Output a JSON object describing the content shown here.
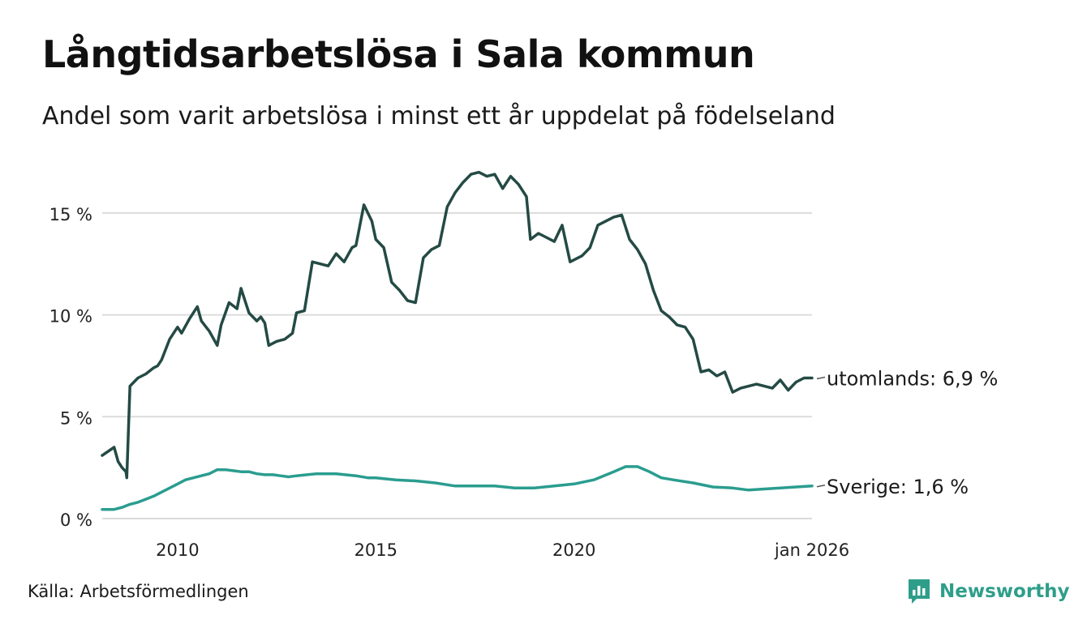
{
  "title": "Långtidsarbetslösa i Sala kommun",
  "subtitle": "Andel som varit arbetslösa i minst ett år uppdelat på födelseland",
  "source": "Källa: Arbetsförmedlingen",
  "brand": {
    "name": "Newsworthy",
    "icon": "newsworthy-logo-icon",
    "color": "#2e9e8a"
  },
  "chart_data": {
    "type": "line",
    "title": "Långtidsarbetslösa i Sala kommun",
    "xlabel": "",
    "ylabel": "",
    "ylim": [
      0,
      17.5
    ],
    "xlim": [
      2008.1,
      2026.0
    ],
    "grid": true,
    "yticks": [
      0,
      5,
      10,
      15
    ],
    "ytick_labels": [
      "0 %",
      "5 %",
      "10 %",
      "15 %"
    ],
    "xticks": [
      2010,
      2015,
      2020,
      2026
    ],
    "xtick_labels": [
      "2010",
      "2015",
      "2020",
      "jan 2026"
    ],
    "series": [
      {
        "name": "utomlands",
        "end_label": "utomlands: 6,9 %",
        "color": "#244a44",
        "x": [
          2008.1,
          2008.4,
          2008.5,
          2008.6,
          2008.7,
          2008.72,
          2008.8,
          2008.9,
          2009.0,
          2009.2,
          2009.4,
          2009.5,
          2009.6,
          2009.8,
          2010.0,
          2010.1,
          2010.3,
          2010.5,
          2010.6,
          2010.8,
          2011.0,
          2011.1,
          2011.3,
          2011.5,
          2011.6,
          2011.8,
          2012.0,
          2012.1,
          2012.2,
          2012.3,
          2012.5,
          2012.7,
          2012.9,
          2013.0,
          2013.2,
          2013.4,
          2013.6,
          2013.8,
          2014.0,
          2014.2,
          2014.4,
          2014.5,
          2014.7,
          2014.9,
          2015.0,
          2015.2,
          2015.4,
          2015.6,
          2015.8,
          2016.0,
          2016.2,
          2016.4,
          2016.6,
          2016.8,
          2017.0,
          2017.2,
          2017.4,
          2017.6,
          2017.8,
          2018.0,
          2018.2,
          2018.4,
          2018.6,
          2018.8,
          2018.9,
          2019.1,
          2019.3,
          2019.5,
          2019.7,
          2019.9,
          2020.0,
          2020.2,
          2020.4,
          2020.6,
          2020.8,
          2021.0,
          2021.2,
          2021.4,
          2021.6,
          2021.8,
          2022.0,
          2022.2,
          2022.4,
          2022.6,
          2022.8,
          2023.0,
          2023.2,
          2023.4,
          2023.6,
          2023.8,
          2024.0,
          2024.2,
          2024.4,
          2024.6,
          2024.8,
          2025.0,
          2025.2,
          2025.4,
          2025.6,
          2025.8,
          2026.0
        ],
        "values": [
          3.1,
          3.5,
          2.8,
          2.5,
          2.3,
          2.0,
          6.5,
          6.7,
          6.9,
          7.1,
          7.4,
          7.5,
          7.8,
          8.8,
          9.4,
          9.1,
          9.8,
          10.4,
          9.7,
          9.2,
          8.5,
          9.5,
          10.6,
          10.3,
          11.3,
          10.1,
          9.7,
          9.9,
          9.6,
          8.5,
          8.7,
          8.8,
          9.1,
          10.1,
          10.2,
          12.6,
          12.5,
          12.4,
          13.0,
          12.6,
          13.3,
          13.4,
          15.4,
          14.6,
          13.7,
          13.3,
          11.6,
          11.2,
          10.7,
          10.6,
          12.8,
          13.2,
          13.4,
          15.3,
          16.0,
          16.5,
          16.9,
          17.0,
          16.8,
          16.9,
          16.2,
          16.8,
          16.4,
          15.8,
          13.7,
          14.0,
          13.8,
          13.6,
          14.4,
          12.6,
          12.7,
          12.9,
          13.3,
          14.4,
          14.6,
          14.8,
          14.9,
          13.7,
          13.2,
          12.5,
          11.2,
          10.2,
          9.9,
          9.5,
          9.4,
          8.8,
          7.2,
          7.3,
          7.0,
          7.2,
          6.2,
          6.4,
          6.5,
          6.6,
          6.5,
          6.4,
          6.8,
          6.3,
          6.7,
          6.9,
          6.9
        ]
      },
      {
        "name": "Sverige",
        "end_label": "Sverige: 1,6 %",
        "color": "#2a9d8f",
        "x": [
          2008.1,
          2008.4,
          2008.6,
          2008.8,
          2009.0,
          2009.2,
          2009.4,
          2009.6,
          2009.8,
          2010.0,
          2010.2,
          2010.4,
          2010.6,
          2010.8,
          2011.0,
          2011.2,
          2011.4,
          2011.6,
          2011.8,
          2012.0,
          2012.2,
          2012.4,
          2012.6,
          2012.8,
          2013.0,
          2013.5,
          2014.0,
          2014.5,
          2014.8,
          2015.0,
          2015.5,
          2016.0,
          2016.5,
          2017.0,
          2017.5,
          2018.0,
          2018.5,
          2019.0,
          2019.5,
          2020.0,
          2020.5,
          2021.0,
          2021.3,
          2021.6,
          2021.9,
          2022.2,
          2022.5,
          2023.0,
          2023.5,
          2024.0,
          2024.4,
          2024.8,
          2025.2,
          2025.6,
          2026.0
        ],
        "values": [
          0.45,
          0.45,
          0.55,
          0.7,
          0.8,
          0.95,
          1.1,
          1.3,
          1.5,
          1.7,
          1.9,
          2.0,
          2.1,
          2.2,
          2.4,
          2.4,
          2.35,
          2.3,
          2.3,
          2.2,
          2.15,
          2.15,
          2.1,
          2.05,
          2.1,
          2.2,
          2.2,
          2.1,
          2.0,
          2.0,
          1.9,
          1.85,
          1.75,
          1.6,
          1.6,
          1.6,
          1.5,
          1.5,
          1.6,
          1.7,
          1.9,
          2.3,
          2.55,
          2.55,
          2.3,
          2.0,
          1.9,
          1.75,
          1.55,
          1.5,
          1.4,
          1.45,
          1.5,
          1.55,
          1.6
        ]
      }
    ]
  }
}
